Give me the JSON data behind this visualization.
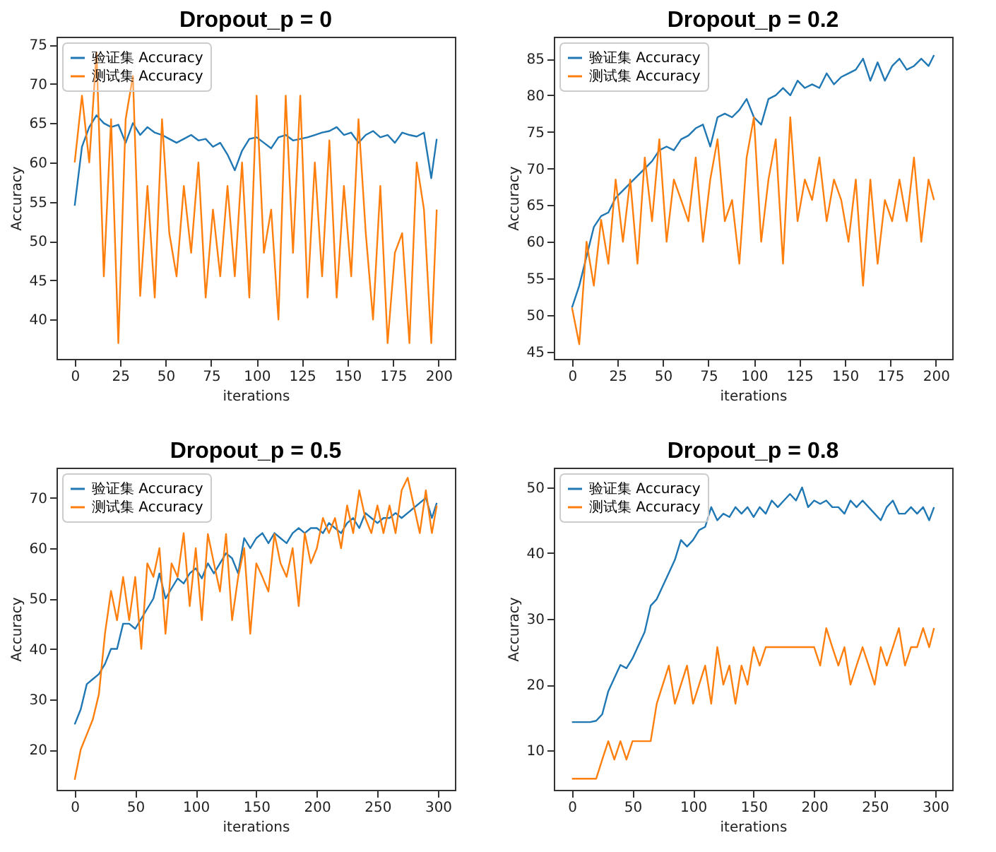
{
  "chart_data": [
    {
      "type": "line",
      "title": "Dropout_p = 0",
      "xlabel": "iterations",
      "ylabel": "Accuracy",
      "legend": "top left",
      "grid": false,
      "line_style": "solid",
      "xlim": [
        -10,
        209
      ],
      "xticks": [
        0,
        25,
        50,
        75,
        100,
        125,
        150,
        175,
        200
      ],
      "ylim": [
        35,
        76
      ],
      "yticks": [
        40,
        45,
        50,
        55,
        60,
        65,
        70,
        75
      ],
      "x": [
        0,
        4,
        8,
        12,
        16,
        20,
        24,
        28,
        32,
        36,
        40,
        44,
        48,
        52,
        56,
        60,
        64,
        68,
        72,
        76,
        80,
        84,
        88,
        92,
        96,
        100,
        104,
        108,
        112,
        116,
        120,
        124,
        128,
        132,
        136,
        140,
        144,
        148,
        152,
        156,
        160,
        164,
        168,
        172,
        176,
        180,
        184,
        188,
        192,
        196,
        199
      ],
      "series": [
        {
          "name": "验证集 Accuracy",
          "color": "#1f77b4",
          "values": [
            54.5,
            62,
            64.5,
            66,
            65,
            64.5,
            64.8,
            62.5,
            65,
            63.5,
            64.5,
            63.8,
            63.5,
            63,
            62.5,
            63,
            63.5,
            62.8,
            63,
            62,
            62.5,
            61,
            59,
            61.5,
            63,
            63.2,
            62.5,
            61.8,
            63.2,
            63.5,
            62.8,
            63,
            63.2,
            63.5,
            63.8,
            64,
            64.5,
            63.5,
            63.8,
            62.5,
            63.5,
            64,
            63.2,
            63.5,
            62.5,
            63.8,
            63.5,
            63.3,
            63.8,
            58,
            63
          ]
        },
        {
          "name": "测试集 Accuracy",
          "color": "#ff7f0e",
          "values": [
            60,
            68.5,
            60,
            74,
            45.5,
            65.5,
            37,
            65.5,
            71,
            43,
            57,
            42.8,
            65.5,
            51,
            45.5,
            57,
            48.5,
            60,
            42.8,
            54,
            45.5,
            57,
            45.5,
            60,
            42.8,
            68.5,
            48.5,
            54,
            40,
            68.5,
            48.5,
            68.5,
            42.8,
            60,
            45.5,
            62.8,
            42.8,
            57,
            45.5,
            65.5,
            51,
            40,
            57,
            37,
            48.5,
            51,
            37,
            60,
            54,
            37,
            54
          ]
        }
      ]
    },
    {
      "type": "line",
      "title": "Dropout_p = 0.2",
      "xlabel": "iterations",
      "ylabel": "Accuracy",
      "legend": "top left",
      "grid": false,
      "line_style": "solid",
      "xlim": [
        -10,
        209
      ],
      "xticks": [
        0,
        25,
        50,
        75,
        100,
        125,
        150,
        175,
        200
      ],
      "ylim": [
        44,
        88
      ],
      "yticks": [
        45,
        50,
        55,
        60,
        65,
        70,
        75,
        80,
        85
      ],
      "x": [
        0,
        4,
        8,
        12,
        16,
        20,
        24,
        28,
        32,
        36,
        40,
        44,
        48,
        52,
        56,
        60,
        64,
        68,
        72,
        76,
        80,
        84,
        88,
        92,
        96,
        100,
        104,
        108,
        112,
        116,
        120,
        124,
        128,
        132,
        136,
        140,
        144,
        148,
        152,
        156,
        160,
        164,
        168,
        172,
        176,
        180,
        184,
        188,
        192,
        196,
        199
      ],
      "series": [
        {
          "name": "验证集 Accuracy",
          "color": "#1f77b4",
          "values": [
            51,
            54,
            58,
            62,
            63.5,
            64,
            66,
            67,
            68,
            69,
            70,
            71,
            72.5,
            73,
            72.5,
            74,
            74.5,
            75.5,
            76,
            73,
            77,
            77.5,
            77,
            78,
            79.5,
            77,
            76,
            79.5,
            80,
            81,
            80,
            82,
            81,
            81.5,
            81,
            83,
            81.5,
            82.5,
            83,
            83.5,
            85,
            82,
            84.5,
            82,
            84,
            85,
            83.5,
            84,
            85,
            84,
            85.5
          ]
        },
        {
          "name": "测试集 Accuracy",
          "color": "#ff7f0e",
          "values": [
            51,
            46,
            60,
            54,
            63,
            57,
            68.5,
            60,
            68.5,
            57,
            71.5,
            62.8,
            74,
            60,
            68.5,
            65.7,
            62.8,
            71.5,
            60,
            68.5,
            74,
            62.8,
            65.7,
            57,
            71.5,
            77,
            60,
            68.5,
            74,
            57,
            77,
            62.8,
            68.5,
            65.7,
            71.5,
            62.8,
            68.5,
            65.7,
            60,
            68.5,
            54,
            68.5,
            57,
            65.7,
            62.8,
            68.5,
            62.8,
            71.5,
            60,
            68.5,
            65.7
          ]
        }
      ]
    },
    {
      "type": "line",
      "title": "Dropout_p = 0.5",
      "xlabel": "iterations",
      "ylabel": "Accuracy",
      "legend": "top left",
      "grid": false,
      "line_style": "solid",
      "xlim": [
        -15,
        314
      ],
      "xticks": [
        0,
        50,
        100,
        150,
        200,
        250,
        300
      ],
      "ylim": [
        12,
        76
      ],
      "yticks": [
        20,
        30,
        40,
        50,
        60,
        70
      ],
      "x": [
        0,
        5,
        10,
        15,
        20,
        25,
        30,
        35,
        40,
        45,
        50,
        55,
        60,
        65,
        70,
        75,
        80,
        85,
        90,
        95,
        100,
        105,
        110,
        115,
        120,
        125,
        130,
        135,
        140,
        145,
        150,
        155,
        160,
        165,
        170,
        175,
        180,
        185,
        190,
        195,
        200,
        205,
        210,
        215,
        220,
        225,
        230,
        235,
        240,
        245,
        250,
        255,
        260,
        265,
        270,
        275,
        280,
        285,
        290,
        295,
        299
      ],
      "series": [
        {
          "name": "验证集 Accuracy",
          "color": "#1f77b4",
          "values": [
            25,
            28,
            33,
            34,
            35,
            37,
            40,
            40,
            45,
            45,
            44,
            46,
            48,
            50,
            55,
            50,
            52,
            54,
            53,
            55,
            56,
            54,
            57,
            55,
            57,
            59,
            58,
            55,
            62,
            60,
            62,
            63,
            61,
            63,
            62,
            61,
            63,
            64,
            63,
            64,
            64,
            63,
            65,
            64,
            63,
            65,
            66,
            64,
            67,
            66,
            65,
            66,
            66,
            67,
            66,
            67,
            68,
            69,
            70,
            66,
            69
          ]
        },
        {
          "name": "测试集 Accuracy",
          "color": "#ff7f0e",
          "values": [
            14,
            20,
            23,
            26,
            31,
            43,
            51.5,
            45.7,
            54.3,
            45.7,
            54.3,
            40,
            57,
            54.3,
            60,
            43,
            57,
            54.3,
            63,
            48.5,
            60,
            45.7,
            62.8,
            57,
            51.4,
            62.8,
            45.7,
            54.3,
            60,
            43,
            57,
            54.3,
            51.4,
            62.8,
            57,
            54.3,
            60,
            48.5,
            63,
            57,
            60,
            66,
            63,
            66,
            60,
            68.5,
            63,
            71.5,
            66,
            63,
            68.5,
            63,
            68.5,
            63,
            71.5,
            74,
            68.5,
            63,
            71.5,
            63,
            68.5
          ]
        }
      ]
    },
    {
      "type": "line",
      "title": "Dropout_p = 0.8",
      "xlabel": "iterations",
      "ylabel": "Accuracy",
      "legend": "top left",
      "grid": false,
      "line_style": "solid",
      "xlim": [
        -15,
        314
      ],
      "xticks": [
        0,
        50,
        100,
        150,
        200,
        250,
        300
      ],
      "ylim": [
        4,
        53
      ],
      "yticks": [
        10,
        20,
        30,
        40,
        50
      ],
      "x": [
        0,
        5,
        10,
        15,
        20,
        25,
        30,
        35,
        40,
        45,
        50,
        55,
        60,
        65,
        70,
        75,
        80,
        85,
        90,
        95,
        100,
        105,
        110,
        115,
        120,
        125,
        130,
        135,
        140,
        145,
        150,
        155,
        160,
        165,
        170,
        175,
        180,
        185,
        190,
        195,
        200,
        205,
        210,
        215,
        220,
        225,
        230,
        235,
        240,
        245,
        250,
        255,
        260,
        265,
        270,
        275,
        280,
        285,
        290,
        295,
        299
      ],
      "series": [
        {
          "name": "验证集 Accuracy",
          "color": "#1f77b4",
          "values": [
            14.3,
            14.3,
            14.3,
            14.3,
            14.5,
            15.5,
            19,
            21,
            23,
            22.5,
            24,
            26,
            28,
            32,
            33,
            35,
            37,
            39,
            42,
            41,
            42,
            43.5,
            44,
            47,
            45,
            46,
            45.5,
            47,
            46,
            47,
            45.5,
            47,
            46,
            48,
            47,
            48,
            49,
            48,
            50,
            47,
            48,
            47.5,
            48,
            47,
            47,
            46,
            48,
            47,
            48,
            47,
            46,
            45,
            47,
            48,
            46,
            46,
            47,
            46,
            47,
            45,
            47
          ]
        },
        {
          "name": "测试集 Accuracy",
          "color": "#ff7f0e",
          "values": [
            5.7,
            5.7,
            5.7,
            5.7,
            5.7,
            8.6,
            11.4,
            8.6,
            11.4,
            8.6,
            11.4,
            11.4,
            11.4,
            11.4,
            17.1,
            20,
            22.9,
            17.1,
            20,
            22.9,
            17.1,
            20,
            22.9,
            17.1,
            25.7,
            20,
            22.9,
            17.1,
            22.9,
            20,
            25.7,
            22.9,
            25.7,
            25.7,
            25.7,
            25.7,
            25.7,
            25.7,
            25.7,
            25.7,
            25.7,
            22.9,
            28.6,
            25.7,
            22.9,
            25.7,
            20,
            22.9,
            25.7,
            22.9,
            20,
            25.7,
            22.9,
            25.7,
            28.6,
            22.9,
            25.7,
            25.7,
            28.6,
            25.7,
            28.6
          ]
        }
      ]
    }
  ]
}
